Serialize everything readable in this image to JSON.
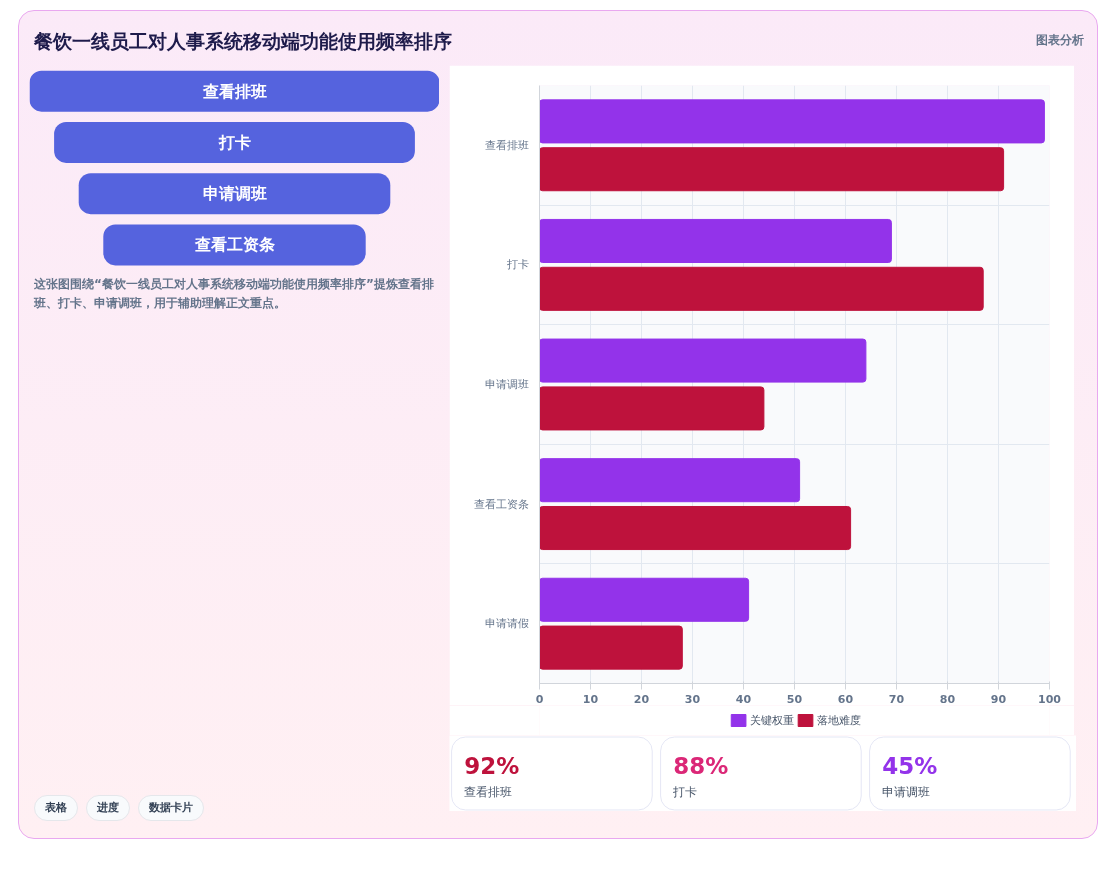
{
  "chart_data": [
    {
      "type": "other",
      "title": "餐饮一线员工对人事系统移动端功能使用频率排序",
      "categories": [
        "查看排班",
        "打卡",
        "申请调班",
        "查看工资条"
      ],
      "color": "#5563de",
      "annotations": [
        "图表分析",
        "这张图围绕“餐饮一线员工对人事系统移动端功能使用频率排序”提炼查看排班、打卡、申请调班，用于辅助理解正文重点。",
        "表格",
        "进度",
        "数据卡片"
      ]
    },
    {
      "type": "bar",
      "orientation": "horizontal",
      "categories": [
        "查看排班",
        "打卡",
        "申请调班",
        "查看工资条",
        "申请请假"
      ],
      "series": [
        {
          "name": "关键权重",
          "color": "#9333ea",
          "values": [
            99,
            69,
            64,
            51,
            41
          ]
        },
        {
          "name": "落地难度",
          "color": "#be123c",
          "values": [
            91,
            87,
            44,
            61,
            28
          ]
        }
      ],
      "xlim": [
        0,
        100
      ],
      "xticks": [
        0,
        10,
        20,
        30,
        40,
        50,
        60,
        70,
        80,
        90,
        100
      ],
      "grid": true,
      "legend": "bottom"
    },
    {
      "type": "other",
      "categories": [
        "查看排班",
        "打卡",
        "申请调班"
      ],
      "value_labels": [
        "92%",
        "88%",
        "45%"
      ]
    }
  ]
}
